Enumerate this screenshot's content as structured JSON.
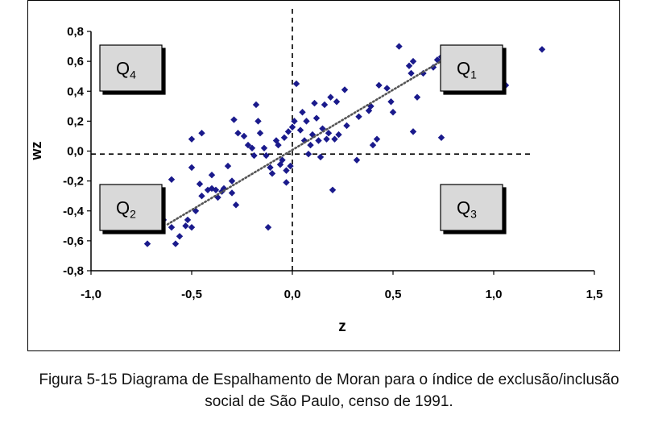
{
  "chart_data": {
    "type": "scatter",
    "xlabel": "z",
    "ylabel": "wz",
    "xlim": [
      -1.0,
      1.5
    ],
    "ylim": [
      -0.8,
      0.8
    ],
    "x_ticks": [
      "-1,0",
      "-0,5",
      "0,0",
      "0,5",
      "1,0",
      "1,5"
    ],
    "y_ticks": [
      "0,8",
      "0,6",
      "0,4",
      "0,2",
      "0,0",
      "-0,2",
      "-0,4",
      "-0,6",
      "-0,8"
    ],
    "grid": false,
    "marker_color": "#1a1a8c",
    "trendline": {
      "style": "dotted",
      "x": [
        -0.62,
        0.75
      ],
      "y": [
        -0.49,
        0.61
      ]
    },
    "mean_lines": {
      "x": 0.0,
      "y": -0.02
    },
    "quadrant_labels": [
      {
        "id": "q4",
        "main": "Q",
        "sub": "4"
      },
      {
        "id": "q1",
        "main": "Q",
        "sub": "1"
      },
      {
        "id": "q2",
        "main": "Q",
        "sub": "2"
      },
      {
        "id": "q3",
        "main": "Q",
        "sub": "3"
      }
    ],
    "points": [
      [
        -0.72,
        -0.62
      ],
      [
        -0.64,
        -0.46
      ],
      [
        -0.6,
        -0.51
      ],
      [
        -0.58,
        -0.62
      ],
      [
        -0.56,
        -0.57
      ],
      [
        -0.53,
        -0.5
      ],
      [
        -0.52,
        -0.46
      ],
      [
        -0.5,
        -0.51
      ],
      [
        -0.48,
        -0.4
      ],
      [
        -0.6,
        -0.19
      ],
      [
        -0.5,
        -0.11
      ],
      [
        -0.46,
        -0.22
      ],
      [
        -0.45,
        -0.3
      ],
      [
        -0.42,
        -0.26
      ],
      [
        -0.4,
        -0.25
      ],
      [
        -0.4,
        -0.16
      ],
      [
        -0.38,
        -0.26
      ],
      [
        -0.37,
        -0.31
      ],
      [
        -0.35,
        -0.27
      ],
      [
        -0.34,
        -0.25
      ],
      [
        -0.32,
        -0.1
      ],
      [
        -0.3,
        -0.2
      ],
      [
        -0.3,
        -0.28
      ],
      [
        -0.28,
        -0.36
      ],
      [
        -0.5,
        0.08
      ],
      [
        -0.45,
        0.12
      ],
      [
        -0.29,
        0.21
      ],
      [
        -0.27,
        0.12
      ],
      [
        -0.24,
        0.1
      ],
      [
        -0.22,
        0.04
      ],
      [
        -0.2,
        0.02
      ],
      [
        -0.19,
        -0.03
      ],
      [
        -0.18,
        0.31
      ],
      [
        -0.17,
        0.2
      ],
      [
        -0.16,
        0.12
      ],
      [
        -0.14,
        0.02
      ],
      [
        -0.13,
        -0.03
      ],
      [
        -0.12,
        -0.51
      ],
      [
        -0.11,
        -0.11
      ],
      [
        -0.1,
        -0.15
      ],
      [
        -0.08,
        0.07
      ],
      [
        -0.07,
        0.04
      ],
      [
        -0.06,
        -0.09
      ],
      [
        -0.05,
        -0.06
      ],
      [
        -0.04,
        0.09
      ],
      [
        -0.03,
        -0.21
      ],
      [
        -0.03,
        -0.13
      ],
      [
        -0.02,
        0.13
      ],
      [
        -0.01,
        -0.1
      ],
      [
        0.0,
        0.16
      ],
      [
        0.01,
        0.2
      ],
      [
        0.02,
        0.45
      ],
      [
        0.04,
        0.14
      ],
      [
        0.05,
        0.26
      ],
      [
        0.06,
        0.07
      ],
      [
        0.07,
        0.2
      ],
      [
        0.08,
        -0.02
      ],
      [
        0.09,
        0.04
      ],
      [
        0.1,
        0.11
      ],
      [
        0.11,
        0.32
      ],
      [
        0.12,
        0.22
      ],
      [
        0.13,
        0.07
      ],
      [
        0.14,
        -0.04
      ],
      [
        0.15,
        0.15
      ],
      [
        0.16,
        0.31
      ],
      [
        0.17,
        0.08
      ],
      [
        0.18,
        0.12
      ],
      [
        0.19,
        0.36
      ],
      [
        0.2,
        -0.26
      ],
      [
        0.21,
        0.08
      ],
      [
        0.22,
        0.33
      ],
      [
        0.23,
        0.11
      ],
      [
        0.26,
        0.41
      ],
      [
        0.27,
        0.17
      ],
      [
        0.32,
        -0.06
      ],
      [
        0.33,
        0.23
      ],
      [
        0.38,
        0.27
      ],
      [
        0.39,
        0.3
      ],
      [
        0.4,
        0.04
      ],
      [
        0.42,
        0.08
      ],
      [
        0.43,
        0.44
      ],
      [
        0.47,
        0.42
      ],
      [
        0.49,
        0.33
      ],
      [
        0.5,
        0.26
      ],
      [
        0.53,
        0.7
      ],
      [
        0.58,
        0.57
      ],
      [
        0.59,
        0.52
      ],
      [
        0.6,
        0.6
      ],
      [
        0.6,
        0.13
      ],
      [
        0.62,
        0.36
      ],
      [
        0.65,
        0.52
      ],
      [
        0.7,
        0.56
      ],
      [
        0.72,
        0.61
      ],
      [
        0.74,
        0.63
      ],
      [
        0.74,
        0.09
      ],
      [
        1.06,
        0.44
      ],
      [
        1.24,
        0.68
      ]
    ]
  },
  "caption": {
    "line1": "Figura 5-15 Diagrama de Espalhamento de Moran para o índice de exclusão/inclusão",
    "line2": "social de São Paulo, censo de 1991."
  }
}
